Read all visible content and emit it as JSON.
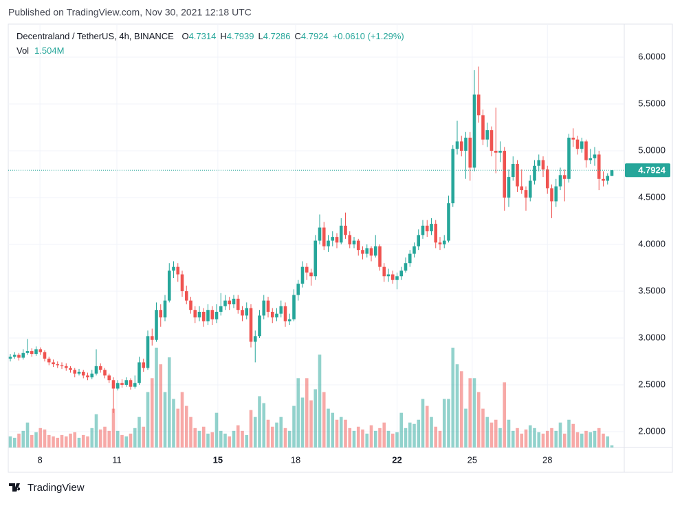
{
  "page": {
    "published": "Published on TradingView.com, Nov 30, 2021 12:18 UTC",
    "brand": "TradingView"
  },
  "chart_data": {
    "type": "candlestick",
    "symbol": "Decentraland / TetherUS, 4h, BINANCE",
    "ohlc_fields": [
      {
        "key": "O",
        "value": "4.7314"
      },
      {
        "key": "H",
        "value": "4.7939"
      },
      {
        "key": "L",
        "value": "4.7286"
      },
      {
        "key": "C",
        "value": "4.7924"
      }
    ],
    "change": "+0.0610 (+1.29%)",
    "volume_name": "Vol",
    "volume_text": "1.504M",
    "up_color": "#26a69a",
    "down_color": "#ef5350",
    "ylim": [
      1.831,
      6.353
    ],
    "yticks": [
      {
        "value": 2,
        "label": "2.0000"
      },
      {
        "value": 2.5,
        "label": "2.5000"
      },
      {
        "value": 3,
        "label": "3.0000"
      },
      {
        "value": 3.5,
        "label": "3.5000"
      },
      {
        "value": 4,
        "label": "4.0000"
      },
      {
        "value": 4.5,
        "label": "4.5000"
      },
      {
        "value": 5,
        "label": "5.0000"
      },
      {
        "value": 5.5,
        "label": "5.5000"
      },
      {
        "value": 6,
        "label": "6.0000"
      }
    ],
    "xticks": [
      {
        "value": 6.9,
        "label": "8"
      },
      {
        "value": 24.8,
        "label": "11"
      },
      {
        "value": 48.3,
        "label": "15"
      },
      {
        "value": 66.4,
        "label": "18"
      },
      {
        "value": 90,
        "label": "22"
      },
      {
        "value": 107.5,
        "label": "25"
      },
      {
        "value": 125,
        "label": "28"
      }
    ],
    "grid": true,
    "candles": [
      [
        2.78,
        2.83,
        2.75,
        2.8,
        8
      ],
      [
        2.8,
        2.85,
        2.78,
        2.82,
        7
      ],
      [
        2.82,
        2.84,
        2.76,
        2.79,
        10
      ],
      [
        2.79,
        2.88,
        2.77,
        2.84,
        12
      ],
      [
        2.84,
        2.99,
        2.82,
        2.86,
        18
      ],
      [
        2.86,
        2.89,
        2.8,
        2.83,
        9
      ],
      [
        2.83,
        2.91,
        2.81,
        2.88,
        11
      ],
      [
        2.88,
        2.9,
        2.82,
        2.85,
        14
      ],
      [
        2.85,
        2.87,
        2.75,
        2.78,
        13
      ],
      [
        2.78,
        2.8,
        2.71,
        2.74,
        9
      ],
      [
        2.74,
        2.77,
        2.69,
        2.72,
        8
      ],
      [
        2.72,
        2.75,
        2.68,
        2.71,
        7
      ],
      [
        2.71,
        2.74,
        2.67,
        2.7,
        9
      ],
      [
        2.7,
        2.73,
        2.65,
        2.68,
        8
      ],
      [
        2.68,
        2.7,
        2.63,
        2.66,
        10
      ],
      [
        2.66,
        2.68,
        2.58,
        2.62,
        11
      ],
      [
        2.62,
        2.67,
        2.6,
        2.64,
        7
      ],
      [
        2.64,
        2.66,
        2.57,
        2.6,
        9
      ],
      [
        2.6,
        2.63,
        2.55,
        2.58,
        8
      ],
      [
        2.58,
        2.66,
        2.56,
        2.62,
        14
      ],
      [
        2.62,
        2.88,
        2.6,
        2.7,
        24
      ],
      [
        2.7,
        2.73,
        2.63,
        2.66,
        13
      ],
      [
        2.66,
        2.68,
        2.57,
        2.6,
        15
      ],
      [
        2.6,
        2.62,
        2.52,
        2.55,
        12
      ],
      [
        2.55,
        2.58,
        2.2,
        2.46,
        28
      ],
      [
        2.46,
        2.55,
        2.44,
        2.52,
        12
      ],
      [
        2.52,
        2.56,
        2.47,
        2.5,
        9
      ],
      [
        2.5,
        2.58,
        2.48,
        2.55,
        8
      ],
      [
        2.55,
        2.57,
        2.45,
        2.48,
        10
      ],
      [
        2.48,
        2.6,
        2.46,
        2.52,
        14
      ],
      [
        2.52,
        2.8,
        2.5,
        2.74,
        22
      ],
      [
        2.74,
        2.78,
        2.64,
        2.68,
        15
      ],
      [
        2.68,
        3.08,
        2.66,
        3.02,
        40
      ],
      [
        3.02,
        3.1,
        2.92,
        2.98,
        50
      ],
      [
        2.98,
        3.38,
        2.96,
        3.3,
        72
      ],
      [
        3.3,
        3.36,
        3.12,
        3.22,
        60
      ],
      [
        3.22,
        3.46,
        3.18,
        3.4,
        40
      ],
      [
        3.4,
        3.8,
        3.38,
        3.72,
        65
      ],
      [
        3.72,
        3.82,
        3.64,
        3.76,
        35
      ],
      [
        3.76,
        3.8,
        3.6,
        3.68,
        28
      ],
      [
        3.68,
        3.72,
        3.44,
        3.5,
        40
      ],
      [
        3.5,
        3.56,
        3.36,
        3.4,
        30
      ],
      [
        3.4,
        3.44,
        3.26,
        3.3,
        22
      ],
      [
        3.3,
        3.34,
        3.16,
        3.22,
        14
      ],
      [
        3.22,
        3.34,
        3.18,
        3.28,
        12
      ],
      [
        3.28,
        3.32,
        3.12,
        3.18,
        15
      ],
      [
        3.18,
        3.36,
        3.14,
        3.3,
        10
      ],
      [
        3.3,
        3.34,
        3.14,
        3.2,
        11
      ],
      [
        3.2,
        3.36,
        3.16,
        3.28,
        25
      ],
      [
        3.28,
        3.48,
        3.24,
        3.34,
        12
      ],
      [
        3.34,
        3.46,
        3.3,
        3.4,
        10
      ],
      [
        3.4,
        3.44,
        3.3,
        3.36,
        8
      ],
      [
        3.36,
        3.46,
        3.32,
        3.42,
        12
      ],
      [
        3.42,
        3.46,
        3.26,
        3.3,
        16
      ],
      [
        3.3,
        3.34,
        3.18,
        3.24,
        12
      ],
      [
        3.24,
        3.38,
        3.2,
        3.32,
        9
      ],
      [
        3.32,
        3.36,
        2.9,
        2.96,
        27
      ],
      [
        2.96,
        3.08,
        2.74,
        3.02,
        22
      ],
      [
        3.02,
        3.3,
        3.0,
        3.24,
        37
      ],
      [
        3.24,
        3.46,
        3.2,
        3.4,
        32
      ],
      [
        3.4,
        3.44,
        3.22,
        3.28,
        20
      ],
      [
        3.28,
        3.32,
        3.16,
        3.22,
        15
      ],
      [
        3.22,
        3.32,
        3.18,
        3.26,
        18
      ],
      [
        3.26,
        3.4,
        3.22,
        3.34,
        22
      ],
      [
        3.34,
        3.38,
        3.12,
        3.18,
        14
      ],
      [
        3.18,
        3.26,
        3.14,
        3.2,
        12
      ],
      [
        3.2,
        3.52,
        3.18,
        3.46,
        30
      ],
      [
        3.46,
        3.62,
        3.4,
        3.58,
        50
      ],
      [
        3.58,
        3.82,
        3.54,
        3.76,
        36
      ],
      [
        3.76,
        3.8,
        3.62,
        3.7,
        50
      ],
      [
        3.7,
        3.74,
        3.56,
        3.66,
        34
      ],
      [
        3.66,
        4.1,
        3.62,
        4.04,
        42
      ],
      [
        4.04,
        4.32,
        4.0,
        4.18,
        67
      ],
      [
        4.18,
        4.24,
        3.94,
        3.98,
        40
      ],
      [
        3.98,
        4.1,
        3.92,
        4.04,
        28
      ],
      [
        4.04,
        4.14,
        3.98,
        4.08,
        25
      ],
      [
        4.08,
        4.12,
        3.96,
        4.02,
        20
      ],
      [
        4.02,
        4.28,
        4.0,
        4.2,
        22
      ],
      [
        4.2,
        4.34,
        4.06,
        4.1,
        20
      ],
      [
        4.1,
        4.14,
        3.96,
        4.0,
        14
      ],
      [
        4.0,
        4.08,
        3.96,
        4.04,
        12
      ],
      [
        4.04,
        4.06,
        3.88,
        3.94,
        15
      ],
      [
        3.94,
        3.98,
        3.84,
        3.9,
        13
      ],
      [
        3.9,
        4.0,
        3.86,
        3.96,
        10
      ],
      [
        3.96,
        3.98,
        3.82,
        3.88,
        16
      ],
      [
        3.88,
        4.1,
        3.86,
        3.98,
        12
      ],
      [
        3.98,
        4.0,
        3.72,
        3.76,
        14
      ],
      [
        3.76,
        3.8,
        3.6,
        3.66,
        18
      ],
      [
        3.66,
        3.74,
        3.6,
        3.68,
        12
      ],
      [
        3.68,
        3.72,
        3.58,
        3.62,
        10
      ],
      [
        3.62,
        3.7,
        3.52,
        3.66,
        11
      ],
      [
        3.66,
        3.76,
        3.62,
        3.72,
        25
      ],
      [
        3.72,
        3.86,
        3.7,
        3.8,
        14
      ],
      [
        3.8,
        3.94,
        3.76,
        3.9,
        18
      ],
      [
        3.9,
        4.02,
        3.86,
        3.98,
        17
      ],
      [
        3.98,
        4.16,
        3.94,
        4.1,
        20
      ],
      [
        4.1,
        4.26,
        4.06,
        4.2,
        35
      ],
      [
        4.2,
        4.26,
        4.08,
        4.14,
        30
      ],
      [
        4.14,
        4.28,
        4.1,
        4.22,
        22
      ],
      [
        4.22,
        4.26,
        3.96,
        4.02,
        15
      ],
      [
        4.02,
        4.08,
        3.94,
        4.0,
        12
      ],
      [
        4.0,
        4.1,
        3.96,
        4.04,
        35
      ],
      [
        4.04,
        4.52,
        4.02,
        4.44,
        35
      ],
      [
        4.44,
        5.06,
        4.4,
        5.02,
        72
      ],
      [
        5.02,
        5.32,
        4.96,
        5.1,
        60
      ],
      [
        5.1,
        5.16,
        4.94,
        5.0,
        55
      ],
      [
        5.0,
        5.2,
        4.7,
        5.14,
        28
      ],
      [
        5.14,
        5.2,
        4.68,
        4.82,
        50
      ],
      [
        4.82,
        5.86,
        4.78,
        5.6,
        50
      ],
      [
        5.6,
        5.9,
        5.3,
        5.38,
        40
      ],
      [
        5.38,
        5.44,
        5.06,
        5.12,
        28
      ],
      [
        5.12,
        5.3,
        5.04,
        5.22,
        22
      ],
      [
        5.22,
        5.26,
        4.94,
        5.0,
        18
      ],
      [
        5.0,
        5.46,
        4.76,
        4.98,
        20
      ],
      [
        4.98,
        5.1,
        4.88,
        5.0,
        14
      ],
      [
        5.0,
        5.04,
        4.36,
        4.5,
        47
      ],
      [
        4.5,
        4.8,
        4.4,
        4.72,
        20
      ],
      [
        4.72,
        4.94,
        4.68,
        4.86,
        12
      ],
      [
        4.86,
        4.9,
        4.56,
        4.62,
        14
      ],
      [
        4.62,
        4.8,
        4.54,
        4.58,
        10
      ],
      [
        4.58,
        4.62,
        4.36,
        4.5,
        13
      ],
      [
        4.5,
        4.74,
        4.46,
        4.68,
        16
      ],
      [
        4.68,
        4.9,
        4.64,
        4.84,
        14
      ],
      [
        4.84,
        4.96,
        4.78,
        4.9,
        11
      ],
      [
        4.9,
        4.94,
        4.72,
        4.8,
        10
      ],
      [
        4.8,
        4.84,
        4.54,
        4.6,
        12
      ],
      [
        4.6,
        4.64,
        4.28,
        4.46,
        14
      ],
      [
        4.46,
        4.7,
        4.4,
        4.62,
        12
      ],
      [
        4.62,
        4.82,
        4.58,
        4.74,
        18
      ],
      [
        4.74,
        4.8,
        4.46,
        4.7,
        10
      ],
      [
        4.7,
        5.18,
        4.66,
        5.14,
        20
      ],
      [
        5.14,
        5.24,
        5.04,
        5.12,
        17
      ],
      [
        5.12,
        5.16,
        4.96,
        5.02,
        11
      ],
      [
        5.02,
        5.14,
        4.98,
        5.1,
        10
      ],
      [
        5.1,
        5.12,
        4.82,
        4.9,
        12
      ],
      [
        4.9,
        5.02,
        4.86,
        4.92,
        11
      ],
      [
        4.92,
        5.04,
        4.84,
        4.96,
        12
      ],
      [
        4.96,
        5.0,
        4.58,
        4.7,
        14
      ],
      [
        4.7,
        4.78,
        4.62,
        4.68,
        10
      ],
      [
        4.68,
        4.76,
        4.64,
        4.7314,
        8
      ],
      [
        4.7314,
        4.7939,
        4.7286,
        4.7924,
        1.504
      ]
    ]
  }
}
